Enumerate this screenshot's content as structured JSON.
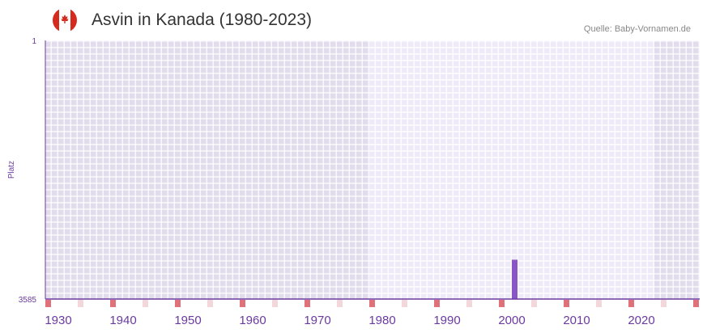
{
  "header": {
    "title": "Asvin in Kanada (1980-2023)",
    "source": "Quelle: Baby-Vornamen.de"
  },
  "chart_data": {
    "type": "bar",
    "title": "Asvin in Kanada (1980-2023)",
    "xlabel": "",
    "ylabel": "Platz",
    "xlim": [
      1928,
      2028
    ],
    "ylim": [
      3585,
      1
    ],
    "y_ticks": [
      "1",
      "3585"
    ],
    "x_ticks": [
      1930,
      1940,
      1950,
      1960,
      1970,
      1980,
      1990,
      2000,
      2010,
      2020
    ],
    "data_period": [
      1978,
      2021
    ],
    "series": [
      {
        "name": "Platz",
        "x": [
          2000
        ],
        "values": [
          3040
        ]
      }
    ],
    "colors": {
      "bar": "#8b55c8",
      "axis": "#6a3aa0",
      "marker_major": "#e0707a",
      "marker_minor": "#f4d6dd",
      "bg_out": "#e2dced",
      "bg_in": "#eeeaf8"
    }
  }
}
